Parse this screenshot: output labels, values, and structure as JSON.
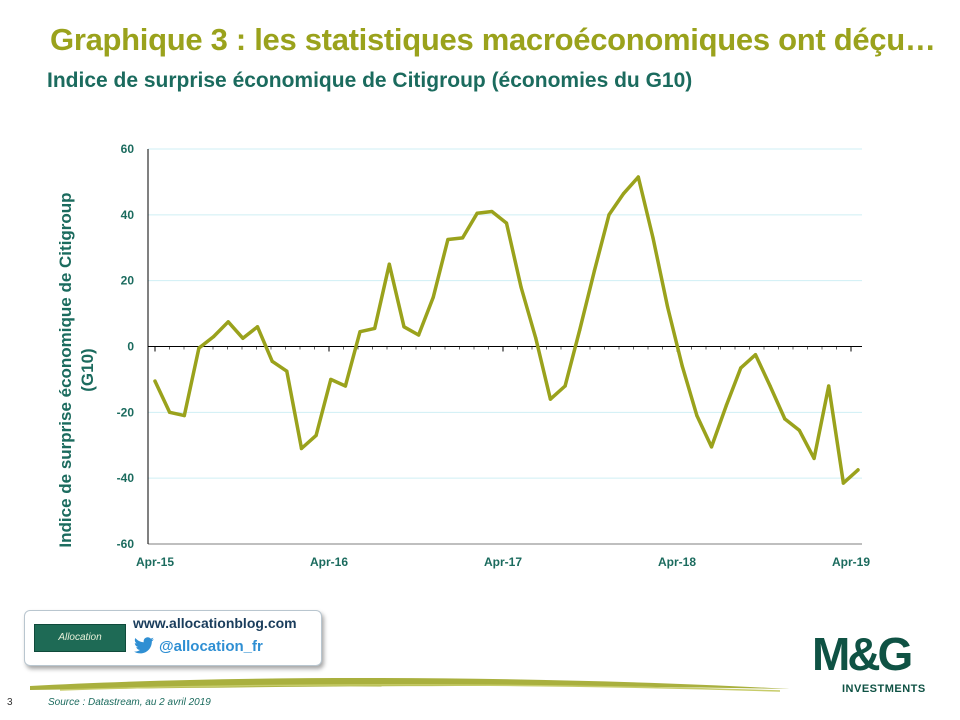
{
  "slide": {
    "title": "Graphique 3 : les statistiques macroéconomiques ont déçu…",
    "subtitle": "Indice de surprise économique de Citigroup (économies du G10)",
    "page_number": "3",
    "source": "Source : Datastream, au 2 avril 2019"
  },
  "footer": {
    "badge_text": "Allocation",
    "website": "www.allocationblog.com",
    "twitter_handle": "@allocation_fr",
    "brand": "M&G",
    "brand_sub": "INVESTMENTS"
  },
  "colors": {
    "title": "#9aa21c",
    "subtitle": "#1b6b5e",
    "series": "#9aa21c",
    "gridline": "#cfeff4",
    "axis": "#000000"
  },
  "chart_data": {
    "type": "line",
    "title": "",
    "xlabel": "",
    "ylabel": "Indice de surprise économique de Citigroup (G10)",
    "ylim": [
      -60,
      60
    ],
    "yticks": [
      60,
      40,
      20,
      0,
      -20,
      -40,
      -60
    ],
    "xtick_labels": [
      "Apr-15",
      "Apr-16",
      "Apr-17",
      "Apr-18",
      "Apr-19"
    ],
    "grid": true,
    "legend": "none",
    "series": [
      {
        "values": [
          -10.5,
          -20,
          -21,
          -0.5,
          3,
          7.5,
          2.5,
          6,
          -4.5,
          -7.5,
          -31,
          -27,
          -10,
          -12,
          4.5,
          5.5,
          25,
          6,
          3.5,
          15,
          32.5,
          33,
          40.5,
          41,
          37.5,
          18,
          2.5,
          -16,
          -12,
          5,
          23,
          40,
          46.5,
          51.5,
          33,
          12,
          -6,
          -21,
          -30.5,
          -18,
          -6.5,
          -2.5,
          -12,
          -22,
          -25.5,
          -34,
          -12,
          -41.5,
          -37.5
        ]
      }
    ]
  }
}
